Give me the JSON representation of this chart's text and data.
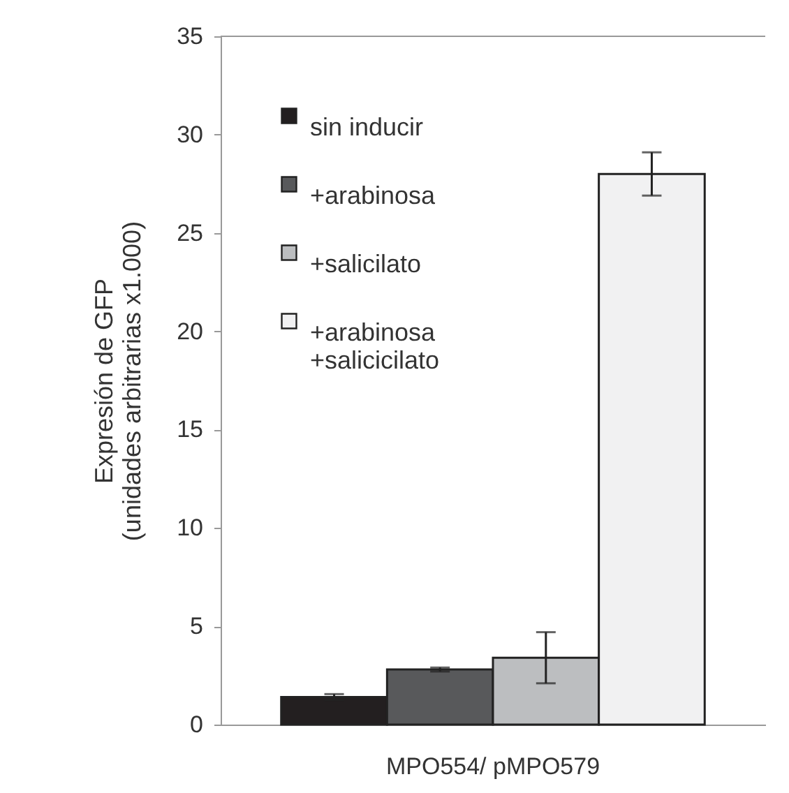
{
  "chart_data": {
    "type": "bar",
    "ylabel": "Expresión de GFP\n(unidades arbitrarias x1.000)",
    "categories": [
      "MPO554/ pMPO579"
    ],
    "series": [
      {
        "name": "sin inducir",
        "color": "#231f20",
        "values": [
          1.4
        ],
        "errors": [
          0.15
        ]
      },
      {
        "name": "+arabinosa",
        "color": "#58595b",
        "values": [
          2.8
        ],
        "errors": [
          0.1
        ]
      },
      {
        "name": "+salicilato",
        "color": "#bcbec0",
        "values": [
          3.4
        ],
        "errors": [
          1.3
        ]
      },
      {
        "name": "+arabinosa\n+salicicilato",
        "color": "#f1f1f2",
        "values": [
          28
        ],
        "errors": [
          1.1
        ]
      }
    ],
    "ylim": [
      0,
      35
    ],
    "yticks": [
      0,
      5,
      10,
      15,
      20,
      25,
      30,
      35
    ],
    "grid": false,
    "legend": "top left"
  }
}
